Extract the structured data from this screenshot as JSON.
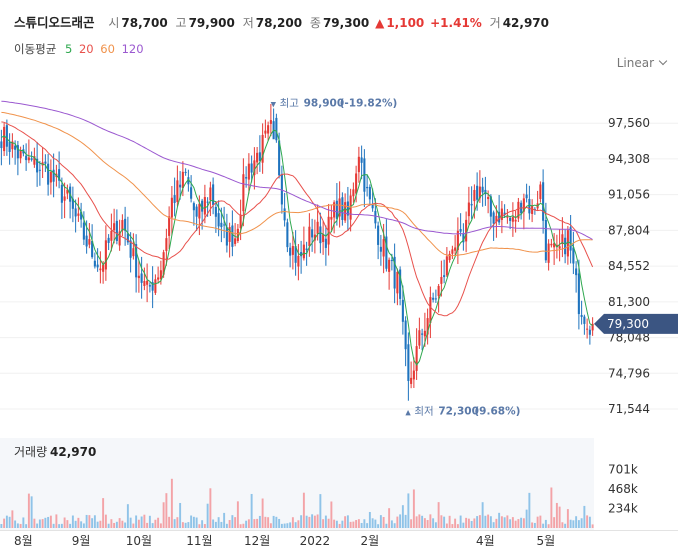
{
  "header": {
    "name": "스튜디오드래곤",
    "open_label": "시",
    "open": "78,700",
    "high_label": "고",
    "high": "79,900",
    "low_label": "저",
    "low": "78,200",
    "close_label": "종",
    "close": "79,300",
    "change": "1,100",
    "change_pct": "+1.41%",
    "volume_label": "거",
    "volume": "42,970"
  },
  "ma_legend": {
    "title": "이동평균",
    "items": [
      {
        "label": "5",
        "color": "#2fa84f"
      },
      {
        "label": "20",
        "color": "#e8514c"
      },
      {
        "label": "60",
        "color": "#f0924b"
      },
      {
        "label": "120",
        "color": "#9b59d0"
      }
    ]
  },
  "scale_selector": {
    "label": "Linear"
  },
  "colors": {
    "up": "#e53935",
    "down": "#1e73be",
    "price_tag": "#3b5582",
    "annotation": "#5a79a8"
  },
  "icons": {
    "scale_dropdown": "chevron-down-icon",
    "high_marker": "triangle-down-icon",
    "low_marker": "triangle-up-icon",
    "change_marker": "triangle-up-icon"
  },
  "chart_data": {
    "type": "candlestick",
    "price_axis": {
      "ticks": [
        "97,560",
        "94,308",
        "91,056",
        "87,804",
        "84,552",
        "81,300",
        "78,048",
        "74,796",
        "71,544"
      ],
      "tick_values": [
        97560,
        94308,
        91056,
        87804,
        84552,
        81300,
        78048,
        74796,
        71544
      ],
      "range": [
        70000,
        100400
      ],
      "last_price_label": "79,300",
      "last_price": 79300,
      "grid": true
    },
    "volume_axis": {
      "title": "거래량",
      "current": "42,970",
      "ticks": [
        "701k",
        "468k",
        "234k"
      ],
      "tick_values": [
        701000,
        468000,
        234000
      ],
      "range": [
        0,
        790000
      ]
    },
    "x_axis": {
      "labels": [
        "8월",
        "9월",
        "10월",
        "11월",
        "12월",
        "2022",
        "2월",
        "4월",
        "5월"
      ],
      "label_index": [
        8,
        29,
        50,
        72,
        93,
        114,
        134,
        176,
        198
      ]
    },
    "annotations": {
      "high": {
        "label": "최고",
        "value": "98,900",
        "pct": "(-19.82%)",
        "index": 99,
        "price": 98900
      },
      "low": {
        "label": "최저",
        "value": "72,300",
        "pct": "(9.68%)",
        "index": 148,
        "price": 72300
      }
    },
    "series": [
      {
        "name": "5",
        "color": "#2fa84f"
      },
      {
        "name": "20",
        "color": "#e8514c"
      },
      {
        "name": "60",
        "color": "#f0924b"
      },
      {
        "name": "120",
        "color": "#9b59d0"
      }
    ],
    "close_anchors": [
      [
        0,
        96500
      ],
      [
        8,
        94200
      ],
      [
        16,
        93400
      ],
      [
        24,
        90500
      ],
      [
        32,
        86200
      ],
      [
        36,
        84500
      ],
      [
        40,
        87200
      ],
      [
        44,
        88600
      ],
      [
        48,
        85200
      ],
      [
        53,
        82200
      ],
      [
        58,
        84500
      ],
      [
        62,
        90500
      ],
      [
        67,
        92700
      ],
      [
        71,
        88600
      ],
      [
        76,
        91500
      ],
      [
        80,
        87400
      ],
      [
        85,
        87300
      ],
      [
        89,
        93200
      ],
      [
        94,
        95000
      ],
      [
        99,
        97400
      ],
      [
        104,
        87300
      ],
      [
        108,
        84900
      ],
      [
        113,
        87800
      ],
      [
        118,
        87400
      ],
      [
        122,
        90000
      ],
      [
        126,
        89000
      ],
      [
        130,
        95200
      ],
      [
        133,
        91000
      ],
      [
        137,
        87600
      ],
      [
        140,
        85200
      ],
      [
        144,
        83100
      ],
      [
        148,
        73500
      ],
      [
        152,
        77800
      ],
      [
        156,
        80800
      ],
      [
        160,
        83000
      ],
      [
        164,
        86800
      ],
      [
        168,
        86400
      ],
      [
        171,
        90800
      ],
      [
        174,
        91800
      ],
      [
        178,
        89100
      ],
      [
        182,
        89400
      ],
      [
        186,
        88400
      ],
      [
        190,
        91200
      ],
      [
        193,
        89500
      ],
      [
        196,
        91600
      ],
      [
        198,
        86100
      ],
      [
        202,
        85500
      ],
      [
        206,
        87200
      ],
      [
        210,
        81300
      ],
      [
        214,
        79300
      ]
    ],
    "ma_start": {
      "5": 96500,
      "20": 97800,
      "60": 98600,
      "120": 99600
    }
  }
}
